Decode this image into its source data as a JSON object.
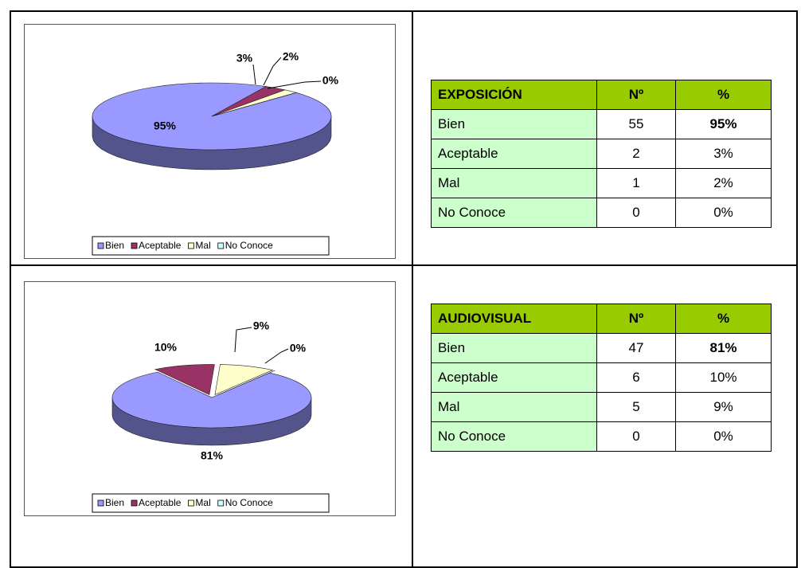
{
  "chart_data": [
    {
      "type": "pie",
      "categories": [
        "Bien",
        "Aceptable",
        "Mal",
        "No Conoce"
      ],
      "values": [
        95,
        3,
        2,
        0
      ],
      "value_labels": [
        "95%",
        "3%",
        "2%",
        "0%"
      ],
      "colors": [
        "#9999ff",
        "#993366",
        "#ffffcc",
        "#ccffff"
      ],
      "legend": "bottom"
    },
    {
      "type": "pie",
      "categories": [
        "Bien",
        "Aceptable",
        "Mal",
        "No Conoce"
      ],
      "values": [
        81,
        10,
        9,
        0
      ],
      "value_labels": [
        "81%",
        "10%",
        "9%",
        "0%"
      ],
      "colors": [
        "#9999ff",
        "#993366",
        "#ffffcc",
        "#ccffff"
      ],
      "legend": "bottom",
      "exploded": true
    }
  ],
  "tables": [
    {
      "header": [
        "EXPOSICIÓN",
        "Nº",
        "%"
      ],
      "rows": [
        [
          "Bien",
          "55",
          "95%"
        ],
        [
          "Aceptable",
          "2",
          "3%"
        ],
        [
          "Mal",
          "1",
          "2%"
        ],
        [
          "No Conoce",
          "0",
          "0%"
        ]
      ]
    },
    {
      "header": [
        "AUDIOVISUAL",
        "Nº",
        "%"
      ],
      "rows": [
        [
          "Bien",
          "47",
          "81%"
        ],
        [
          "Aceptable",
          "6",
          "10%"
        ],
        [
          "Mal",
          "5",
          "9%"
        ],
        [
          "No Conoce",
          "0",
          "0%"
        ]
      ]
    }
  ]
}
